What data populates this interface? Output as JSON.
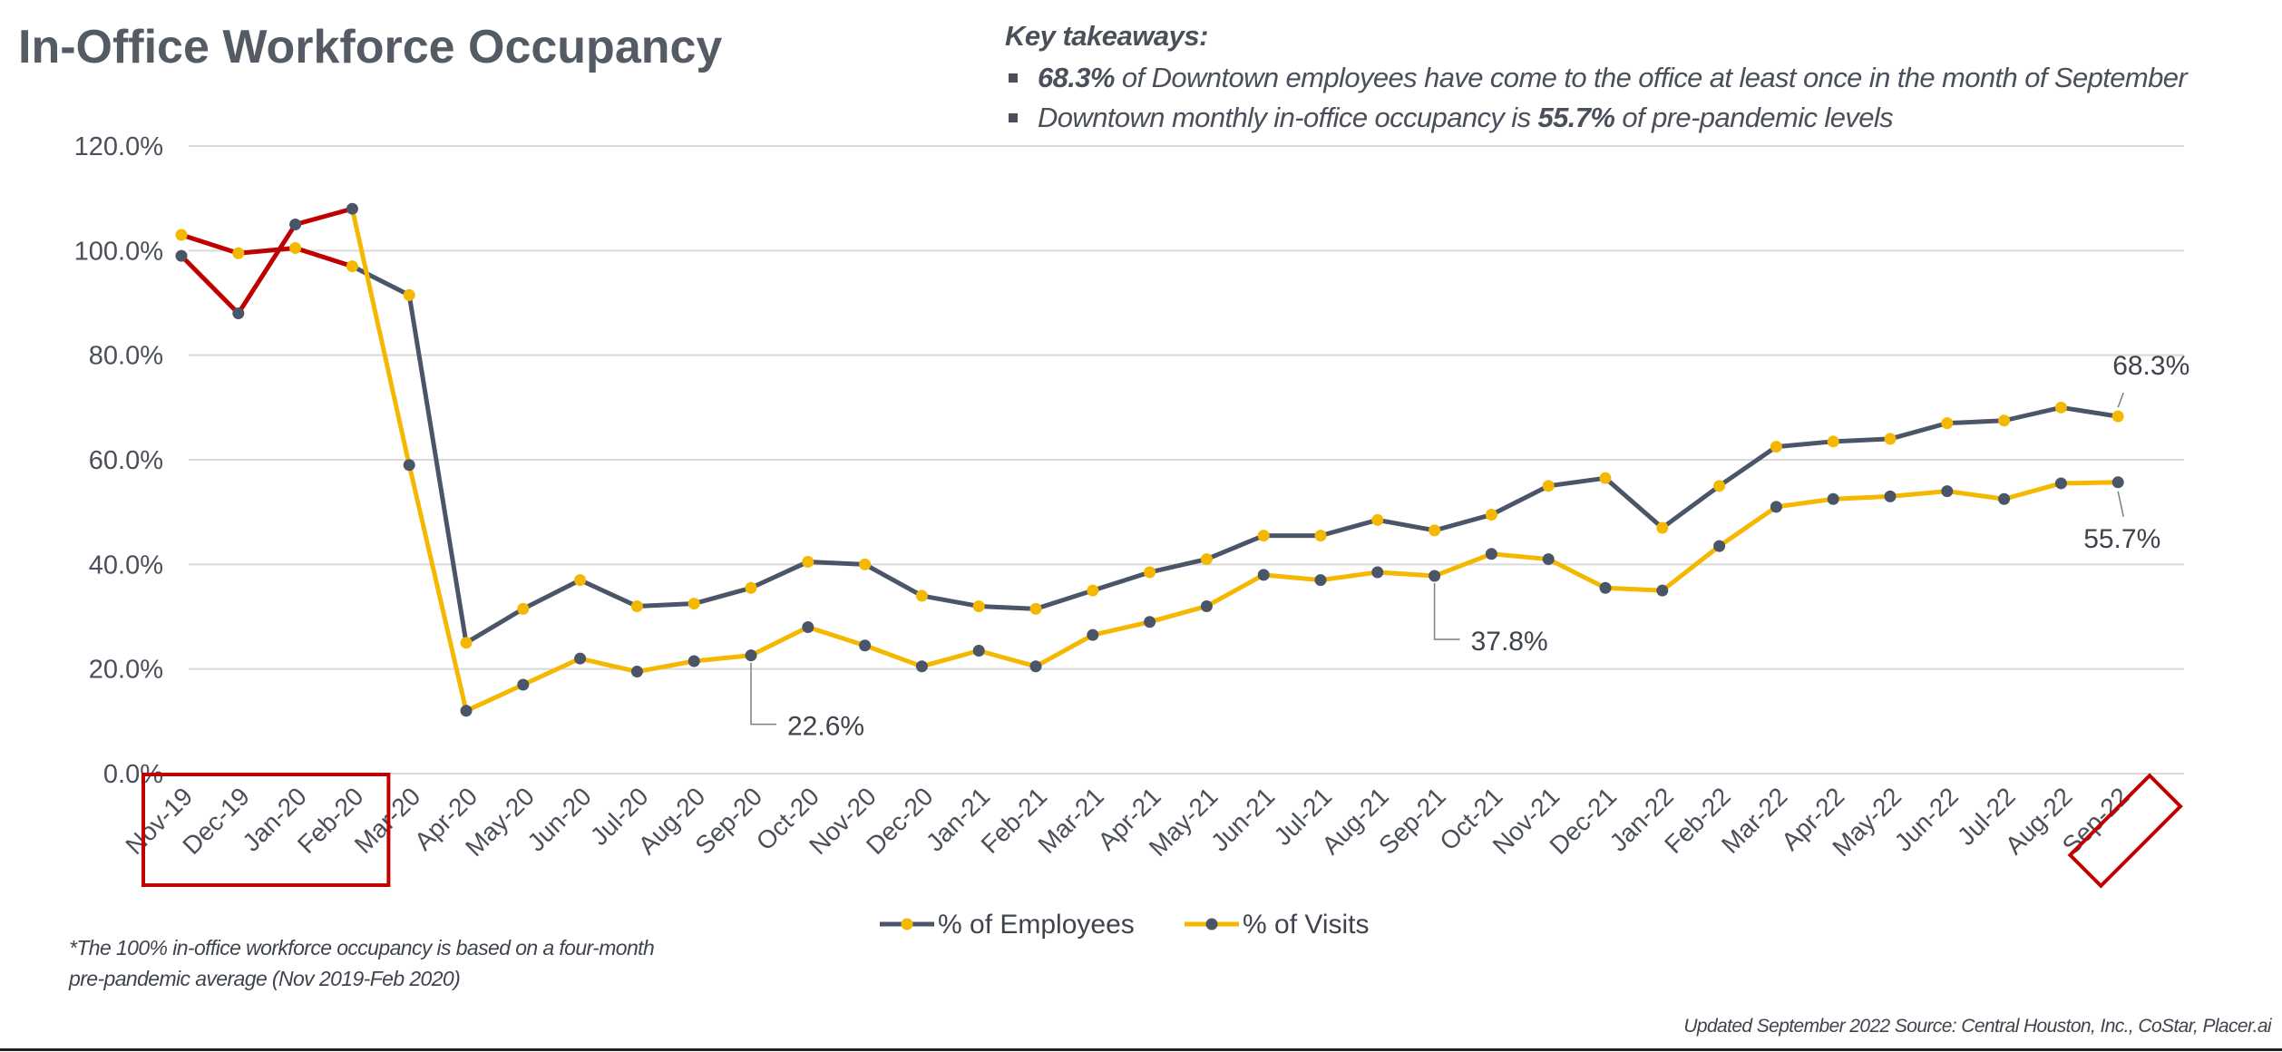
{
  "title": "In-Office Workforce Occupancy",
  "takeaways": {
    "heading": "Key takeaways:",
    "items": [
      {
        "bold": "68.3%",
        "text": " of Downtown employees have come to the office at least once in the month of September"
      },
      {
        "pre": "Downtown monthly in-office occupancy is ",
        "bold": "55.7%",
        "text": " of pre-pandemic levels"
      }
    ]
  },
  "footnote": "*The 100% in-office workforce occupancy is based on a four-month pre-pandemic average (Nov 2019-Feb 2020)",
  "source": "Updated September 2022 Source: Central Houston, Inc., CoStar, Placer.ai",
  "colors": {
    "employees_line": "#4a5568",
    "visits_line": "#f5b800",
    "marker_yellow": "#f5b800",
    "marker_dark": "#4a5568",
    "prepandemic_line": "#c00000",
    "highlight_box": "#c00000",
    "grid": "#d9d9d9"
  },
  "chart_data": {
    "type": "line",
    "categories": [
      "Nov-19",
      "Dec-19",
      "Jan-20",
      "Feb-20",
      "Mar-20",
      "Apr-20",
      "May-20",
      "Jun-20",
      "Jul-20",
      "Aug-20",
      "Sep-20",
      "Oct-20",
      "Nov-20",
      "Dec-20",
      "Jan-21",
      "Feb-21",
      "Mar-21",
      "Apr-21",
      "May-21",
      "Jun-21",
      "Jul-21",
      "Aug-21",
      "Sep-21",
      "Oct-21",
      "Nov-21",
      "Dec-21",
      "Jan-22",
      "Feb-22",
      "Mar-22",
      "Apr-22",
      "May-22",
      "Jun-22",
      "Jul-22",
      "Aug-22",
      "Sep-22"
    ],
    "ylim": [
      0,
      120
    ],
    "yticks": [
      "0.0%",
      "20.0%",
      "40.0%",
      "60.0%",
      "80.0%",
      "100.0%",
      "120.0%"
    ],
    "grid": true,
    "legend_position": "bottom",
    "series": [
      {
        "name": "% of Employees",
        "values": [
          103.0,
          99.5,
          100.5,
          97.0,
          91.5,
          25.0,
          31.5,
          37.0,
          32.0,
          32.5,
          35.5,
          40.5,
          40.0,
          34.0,
          32.0,
          31.5,
          35.0,
          38.5,
          41.0,
          45.5,
          45.5,
          48.5,
          46.5,
          49.5,
          55.0,
          56.5,
          47.0,
          55.0,
          62.5,
          63.5,
          64.0,
          67.0,
          67.5,
          70.0,
          68.3
        ]
      },
      {
        "name": "% of Visits",
        "values": [
          99.0,
          88.0,
          105.0,
          108.0,
          59.0,
          12.0,
          17.0,
          22.0,
          19.5,
          21.5,
          22.6,
          28.0,
          24.5,
          20.5,
          23.5,
          20.5,
          26.5,
          29.0,
          32.0,
          38.0,
          37.0,
          38.5,
          37.8,
          42.0,
          41.0,
          35.5,
          35.0,
          43.5,
          51.0,
          52.5,
          53.0,
          54.0,
          52.5,
          55.5,
          55.7
        ]
      }
    ],
    "prepandemic_segments": [
      "Nov-19",
      "Dec-19",
      "Jan-20",
      "Feb-20"
    ],
    "data_labels": [
      {
        "series": 1,
        "category": "Sep-20",
        "text": "22.6%"
      },
      {
        "series": 1,
        "category": "Sep-21",
        "text": "37.8%"
      },
      {
        "series": 0,
        "category": "Sep-22",
        "text": "68.3%"
      },
      {
        "series": 1,
        "category": "Sep-22",
        "text": "55.7%"
      }
    ],
    "highlighted_categories": [
      [
        "Nov-19",
        "Feb-20"
      ],
      [
        "Sep-22"
      ]
    ]
  }
}
